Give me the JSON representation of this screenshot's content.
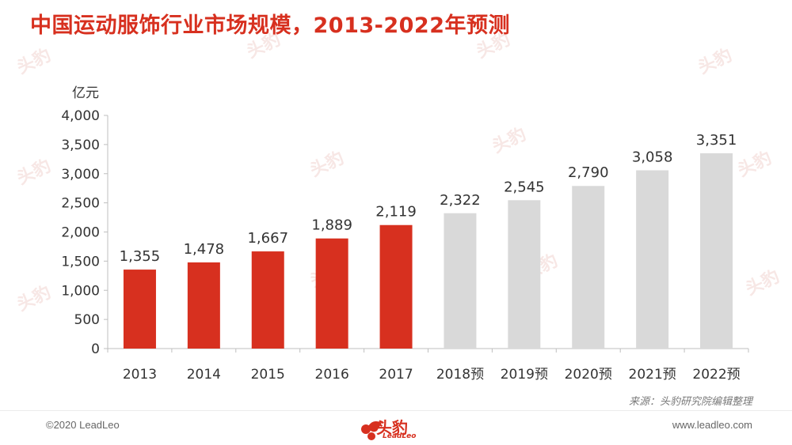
{
  "title": "中国运动服饰行业市场规模，2013-2022年预测",
  "source": "来源：头豹研究院编辑整理",
  "footer": {
    "copyright": "©2020 LeadLeo",
    "website": "www.leadleo.com",
    "logo_text": "头豹",
    "logo_sub": "LeadLeo"
  },
  "watermark": "头豹",
  "colors": {
    "actual": "#d7301f",
    "forecast": "#d9d9d9",
    "title": "#d7301f"
  },
  "chart_data": {
    "type": "bar",
    "ylabel": "亿元",
    "xlabel": "",
    "ylim": [
      0,
      4000
    ],
    "yticks": [
      "0",
      "500",
      "1,000",
      "1,500",
      "2,000",
      "2,500",
      "3,000",
      "3,500",
      "4,000"
    ],
    "ytick_values": [
      0,
      500,
      1000,
      1500,
      2000,
      2500,
      3000,
      3500,
      4000
    ],
    "categories": [
      "2013",
      "2014",
      "2015",
      "2016",
      "2017",
      "2018预",
      "2019预",
      "2020预",
      "2021预",
      "2022预"
    ],
    "values": [
      1355,
      1478,
      1667,
      1889,
      2119,
      2322,
      2545,
      2790,
      3058,
      3351
    ],
    "value_labels": [
      "1,355",
      "1,478",
      "1,667",
      "1,889",
      "2,119",
      "2,322",
      "2,545",
      "2,790",
      "3,058",
      "3,351"
    ],
    "forecast": [
      false,
      false,
      false,
      false,
      false,
      true,
      true,
      true,
      true,
      true
    ],
    "grid": false,
    "legend": "none"
  }
}
